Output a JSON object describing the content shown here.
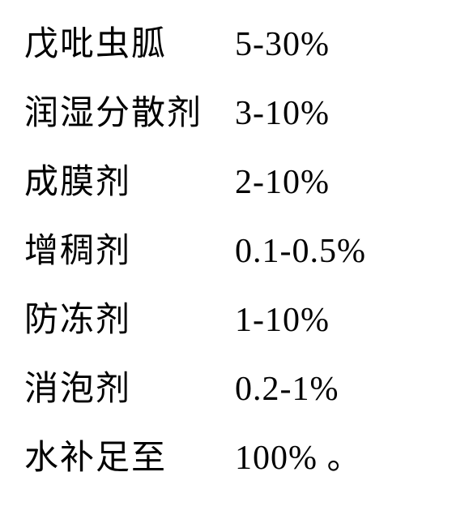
{
  "rows": [
    {
      "label": "戊吡虫胍",
      "value": "5-30%"
    },
    {
      "label": "润湿分散剂",
      "value": "3-10%"
    },
    {
      "label": "成膜剂",
      "value": "2-10%"
    },
    {
      "label": "增稠剂",
      "value": "0.1-0.5%"
    },
    {
      "label": "防冻剂",
      "value": "1-10%"
    },
    {
      "label": "消泡剂",
      "value": "0.2-1%"
    },
    {
      "label": "水补足至",
      "value": "100% 。"
    }
  ],
  "style": {
    "background_color": "#ffffff",
    "text_color": "#000000",
    "font_size": 42,
    "label_width": 260,
    "row_spacing": 24
  }
}
